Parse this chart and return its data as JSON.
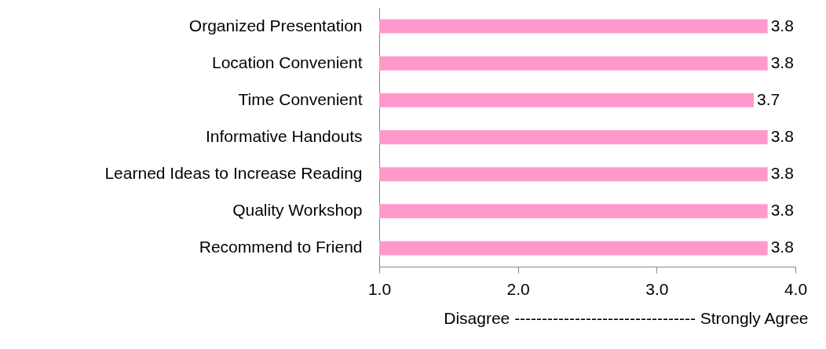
{
  "chart_data": {
    "type": "bar",
    "orientation": "horizontal",
    "xlabel": "Disagree --------------------------------- Strongly Agree",
    "categories": [
      "Organized Presentation",
      "Location Convenient",
      "Time Convenient",
      "Informative Handouts",
      "Learned Ideas to Increase Reading",
      "Quality Workshop",
      "Recommend to Friend"
    ],
    "values": [
      3.8,
      3.8,
      3.7,
      3.8,
      3.8,
      3.8,
      3.8
    ],
    "color": "#ff99cc",
    "data_labels": true,
    "xlim": [
      1,
      4
    ],
    "xticks": [
      {
        "value": 1,
        "label": "1.0"
      },
      {
        "value": 2,
        "label": "2.0"
      },
      {
        "value": 3,
        "label": "3.0"
      },
      {
        "value": 4,
        "label": "4.0"
      }
    ],
    "grid": false
  }
}
